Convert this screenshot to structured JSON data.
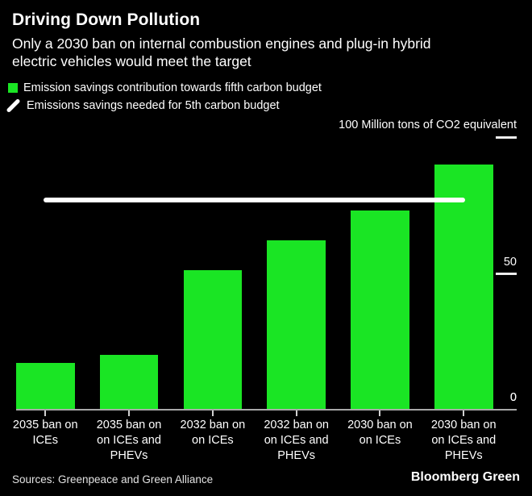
{
  "header": {
    "title": "Driving Down Pollution",
    "subtitle_lines": [
      "Only a 2030 ban on internal combustion engines and plug-in hybrid",
      "electric vehicles would meet the target"
    ]
  },
  "legend": {
    "items": [
      {
        "icon": "green-square",
        "label": "Emission savings contribution towards fifth carbon budget"
      },
      {
        "icon": "diagonal-line",
        "label": "Emissions savings needed for 5th carbon budget"
      }
    ]
  },
  "axis": {
    "unit_label": "100 Million tons of CO2 equivalent",
    "yticks": [
      {
        "value": 100,
        "label": "",
        "show_line": true
      },
      {
        "value": 50,
        "label": "50",
        "show_line": true
      },
      {
        "value": 0,
        "label": "0",
        "show_line": false
      }
    ]
  },
  "chart_data": {
    "type": "bar",
    "title": "Driving Down Pollution",
    "subtitle": "Only a 2030 ban on internal combustion engines and plug-in hybrid electric vehicles would meet the target",
    "categories": [
      "2035 ban on ICEs",
      "2035 ban on on ICEs and PHEVs",
      "2032 ban on on ICEs",
      "2032 ban on on ICEs and PHEVs",
      "2030 ban on on ICEs",
      "2030 ban on on ICEs and PHEVs"
    ],
    "categories_lines": [
      [
        "2035 ban on",
        "ICEs"
      ],
      [
        "2035 ban on",
        "on ICEs and",
        "PHEVs"
      ],
      [
        "2032 ban on",
        "on ICEs"
      ],
      [
        "2032 ban on",
        "on ICEs and",
        "PHEVs"
      ],
      [
        "2030 ban on",
        "on ICEs"
      ],
      [
        "2030 ban on",
        "on ICEs and",
        "PHEVs"
      ]
    ],
    "values": [
      17,
      20,
      51,
      62,
      73,
      90
    ],
    "target_line_value": 77,
    "ylabel": "100 Million tons of CO2 equivalent",
    "ylim": [
      0,
      100
    ],
    "grid": false,
    "legend_position": "top-left"
  },
  "footer": {
    "sources": "Sources: Greenpeace and Green Alliance",
    "brand": "Bloomberg Green"
  },
  "colors": {
    "background": "#000000",
    "bar": "#1ae524",
    "target_line": "#ffffff",
    "baseline": "#a8a8a8",
    "tick": "#ededed",
    "text": "#ffffff"
  }
}
